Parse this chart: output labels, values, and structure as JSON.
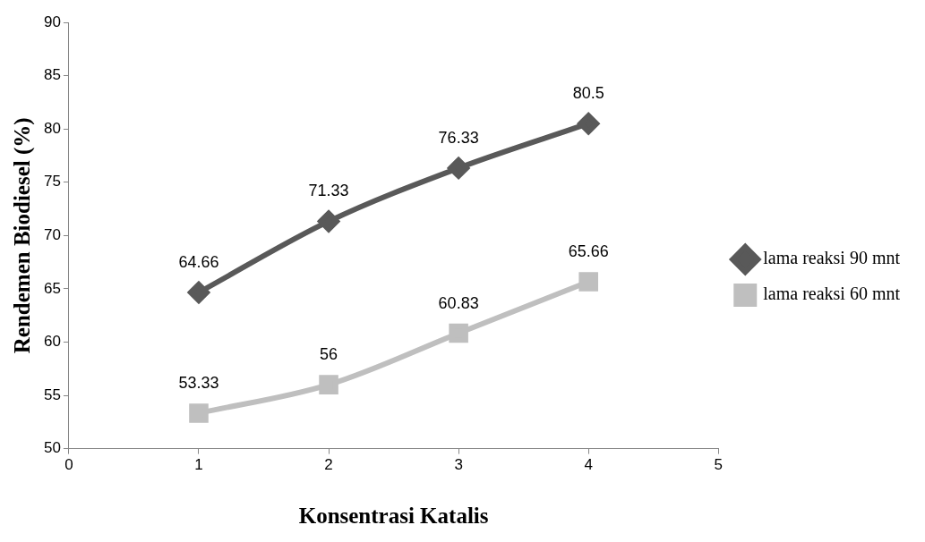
{
  "chart_data": {
    "type": "line",
    "xlabel": "Konsentrasi Katalis",
    "ylabel": "Rendemen Biodiesel (%)",
    "x": [
      1,
      2,
      3,
      4
    ],
    "series": [
      {
        "name": "lama reaksi 90 mnt",
        "color": "#595959",
        "marker": "diamond",
        "values": [
          64.66,
          71.33,
          76.33,
          80.5
        ]
      },
      {
        "name": "lama reaksi 60 mnt",
        "color": "#bfbfbf",
        "marker": "square",
        "values": [
          53.33,
          56,
          60.83,
          65.66
        ]
      }
    ],
    "xlim": [
      0,
      5
    ],
    "xticks": [
      0,
      1,
      2,
      3,
      4,
      5
    ],
    "ylim": [
      50,
      90
    ],
    "yticks": [
      50,
      55,
      60,
      65,
      70,
      75,
      80,
      85,
      90
    ],
    "grid": false,
    "legend": "right",
    "data_labels": true
  }
}
